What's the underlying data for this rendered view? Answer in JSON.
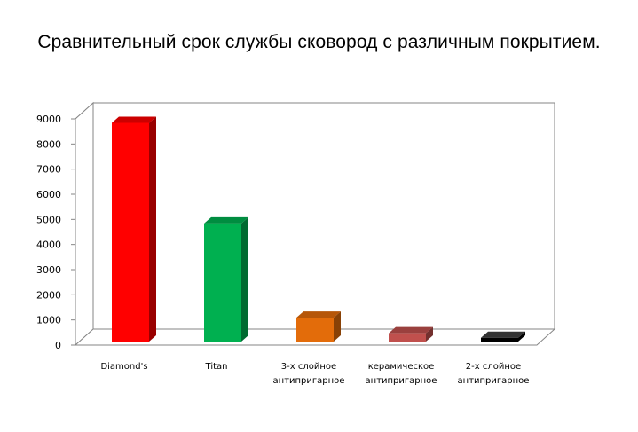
{
  "chart_data": {
    "type": "bar",
    "title": "Сравнительный срок службы сковород с различным покрытием.",
    "categories": [
      [
        "Diamond's"
      ],
      [
        "Titan"
      ],
      [
        "3-х слойное",
        "антипригарное"
      ],
      [
        "керамическое",
        "антипригарное"
      ],
      [
        "2-х слойное",
        "антипригарное"
      ]
    ],
    "values": [
      8700,
      4700,
      950,
      330,
      150
    ],
    "bar_colors": [
      "#ff0000",
      "#00b050",
      "#e36c0a",
      "#c0504d",
      "#000000"
    ],
    "ylim": [
      0,
      9000
    ],
    "yticks": [
      0,
      1000,
      2000,
      3000,
      4000,
      5000,
      6000,
      7000,
      8000,
      9000
    ],
    "grid": true,
    "legend": "none",
    "style": "3d-columns"
  }
}
